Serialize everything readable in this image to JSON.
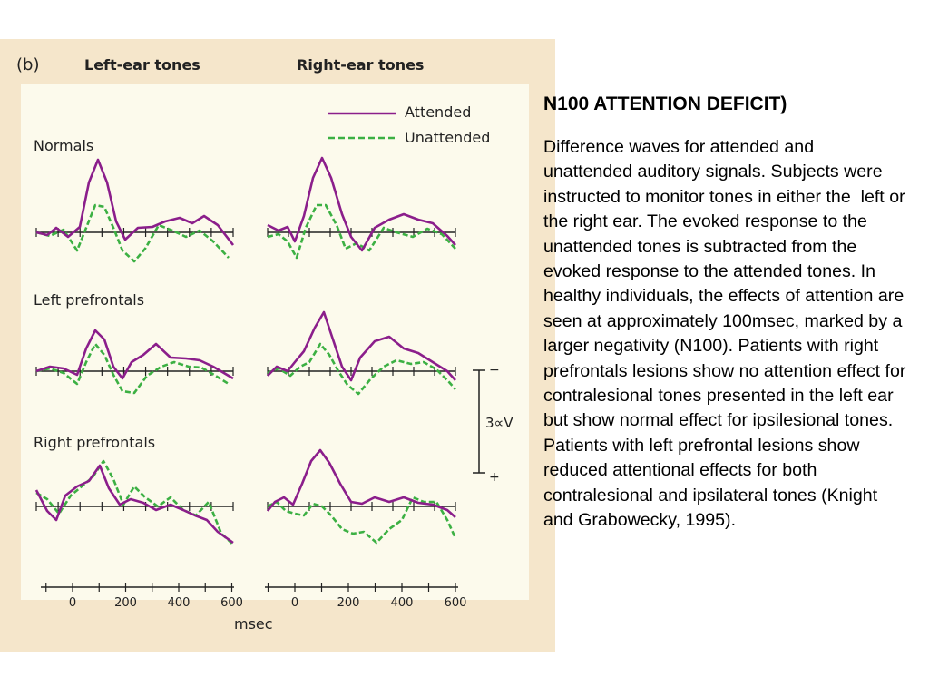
{
  "slide": {
    "title": "N100 ATTENTION DEFICIT)",
    "caption": "Difference waves for attended and unattended auditory signals. Subjects were instructed to monitor tones in either the  left or the right ear. The evoked response to the unattended tones is subtracted from the evoked response to the attended tones. In healthy individuals, the effects of attention are seen at approximately 100msec, marked by a larger negativity (N100). Patients with right prefrontals lesions show no attention effect for contralesional tones presented in the left ear but show normal effect for ipsilesional tones. Patients with left prefrontal lesions show reduced attentional effects for both contralesional and ipsilateral tones (Knight and Grabowecky, 1995)."
  },
  "figure": {
    "panel_label": "(b)",
    "column_titles": [
      "Left-ear tones",
      "Right-ear tones"
    ],
    "row_labels": [
      "Normals",
      "Left prefrontals",
      "Right prefrontals"
    ],
    "legend": [
      {
        "label": "Attended",
        "color": "#8b1e8b",
        "style": "solid"
      },
      {
        "label": "Unattended",
        "color": "#3cb043",
        "style": "dashed"
      }
    ],
    "scale_bar": {
      "label": "3∝V",
      "top_sign": "−",
      "bottom_sign": "+"
    },
    "x_axis": {
      "ticks": [
        "0",
        "200",
        "400",
        "600"
      ],
      "label": "msec"
    },
    "colors": {
      "attended": "#8b1e8b",
      "unattended": "#3cb043",
      "axis": "#222222",
      "panel_bg": "#f5e6cb",
      "plot_bg": "#fcfaec"
    }
  }
}
